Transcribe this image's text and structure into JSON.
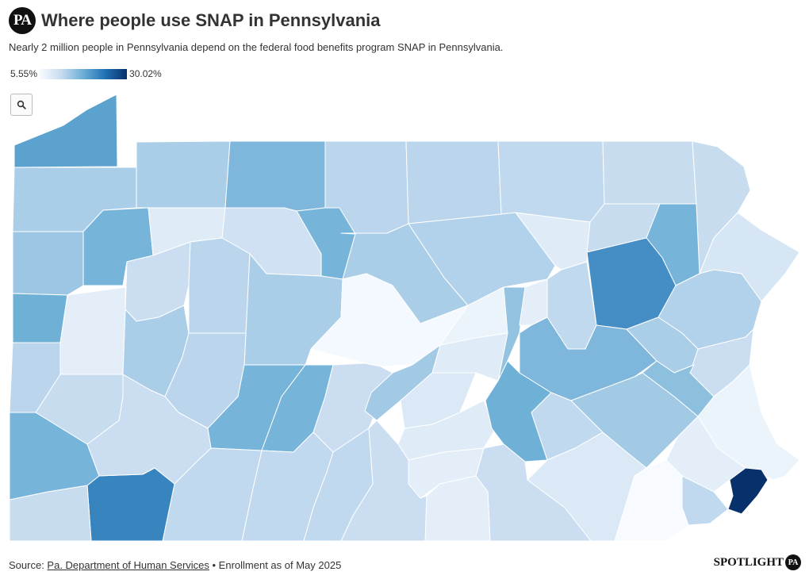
{
  "header": {
    "logo_text": "PA",
    "title": "Where people use SNAP in Pennsylvania",
    "subtitle": "Nearly 2 million people in Pennsylvania depend on the federal food benefits program SNAP in Pennsylvania."
  },
  "legend": {
    "min_label": "5.55%",
    "max_label": "30.02%",
    "min_value": 5.55,
    "max_value": 30.02,
    "color_low": "#f7fbff",
    "color_high": "#08306b"
  },
  "search": {
    "icon": "magnifier-icon"
  },
  "map_data": {
    "type": "choropleth",
    "region": "Pennsylvania counties",
    "metric_unit": "percent",
    "value_range": [
      5.55,
      30.02
    ],
    "counties": [
      {
        "key": "erie",
        "value": 19.0
      },
      {
        "key": "warren",
        "value": 13.5
      },
      {
        "key": "mckean",
        "value": 16.5
      },
      {
        "key": "potter",
        "value": 12.5
      },
      {
        "key": "tioga",
        "value": 12.5
      },
      {
        "key": "bradford",
        "value": 12.0
      },
      {
        "key": "susquehanna",
        "value": 11.5
      },
      {
        "key": "wayne",
        "value": 11.5
      },
      {
        "key": "crawford",
        "value": 13.5
      },
      {
        "key": "venango",
        "value": 17.0
      },
      {
        "key": "forest",
        "value": 8.5
      },
      {
        "key": "elk",
        "value": 10.5
      },
      {
        "key": "cameron",
        "value": 17.0
      },
      {
        "key": "clinton",
        "value": 13.5
      },
      {
        "key": "lycoming",
        "value": 13.0
      },
      {
        "key": "sullivan",
        "value": 8.5
      },
      {
        "key": "wyoming",
        "value": 11.5
      },
      {
        "key": "lackawanna",
        "value": 17.0
      },
      {
        "key": "pike",
        "value": 9.5
      },
      {
        "key": "mercer",
        "value": 14.5
      },
      {
        "key": "lawrence",
        "value": 17.5
      },
      {
        "key": "clarion",
        "value": 11.0
      },
      {
        "key": "jefferson",
        "value": 12.5
      },
      {
        "key": "clearfield",
        "value": 13.5
      },
      {
        "key": "centre",
        "value": 6.0
      },
      {
        "key": "union",
        "value": 7.0
      },
      {
        "key": "northumberland",
        "value": 15.0
      },
      {
        "key": "columbia",
        "value": 12.0
      },
      {
        "key": "luzerne",
        "value": 21.0
      },
      {
        "key": "monroe",
        "value": 13.0
      },
      {
        "key": "butler",
        "value": 8.0
      },
      {
        "key": "armstrong",
        "value": 13.5
      },
      {
        "key": "indiana",
        "value": 12.5
      },
      {
        "key": "cambria",
        "value": 17.0
      },
      {
        "key": "blair",
        "value": 17.0
      },
      {
        "key": "huntingdon",
        "value": 11.0
      },
      {
        "key": "mifflin",
        "value": 14.0
      },
      {
        "key": "juniata",
        "value": 9.0
      },
      {
        "key": "snyder",
        "value": 8.5
      },
      {
        "key": "schuylkill",
        "value": 16.5
      },
      {
        "key": "carbon",
        "value": 13.5
      },
      {
        "key": "northampton",
        "value": 11.0
      },
      {
        "key": "lehigh",
        "value": 15.5
      },
      {
        "key": "beaver",
        "value": 12.5
      },
      {
        "key": "allegheny",
        "value": 11.5
      },
      {
        "key": "westmoreland",
        "value": 11.0
      },
      {
        "key": "bedford",
        "value": 12.0
      },
      {
        "key": "fulton",
        "value": 12.0
      },
      {
        "key": "franklin",
        "value": 11.0
      },
      {
        "key": "perry",
        "value": 8.5
      },
      {
        "key": "cumberland",
        "value": 8.0
      },
      {
        "key": "dauphin",
        "value": 17.5
      },
      {
        "key": "lebanon",
        "value": 12.0
      },
      {
        "key": "berks",
        "value": 14.0
      },
      {
        "key": "bucks",
        "value": 7.0
      },
      {
        "key": "montgomery",
        "value": 8.0
      },
      {
        "key": "washington",
        "value": 17.0
      },
      {
        "key": "greene",
        "value": 11.5
      },
      {
        "key": "fayette",
        "value": 22.0
      },
      {
        "key": "somerset",
        "value": 12.0
      },
      {
        "key": "adams",
        "value": 8.0
      },
      {
        "key": "york",
        "value": 11.0
      },
      {
        "key": "lancaster",
        "value": 9.0
      },
      {
        "key": "chester",
        "value": 5.55
      },
      {
        "key": "delaware",
        "value": 12.0
      },
      {
        "key": "philadelphia",
        "value": 30.02
      },
      {
        "key": "montour",
        "value": 8.0
      }
    ]
  },
  "footer": {
    "source_prefix": "Source: ",
    "source_link": "Pa. Department of Human Services",
    "note": " • Enrollment as of May 2025"
  },
  "brand": {
    "wordmark": "SPOTLIGHT",
    "badge": "PA"
  }
}
